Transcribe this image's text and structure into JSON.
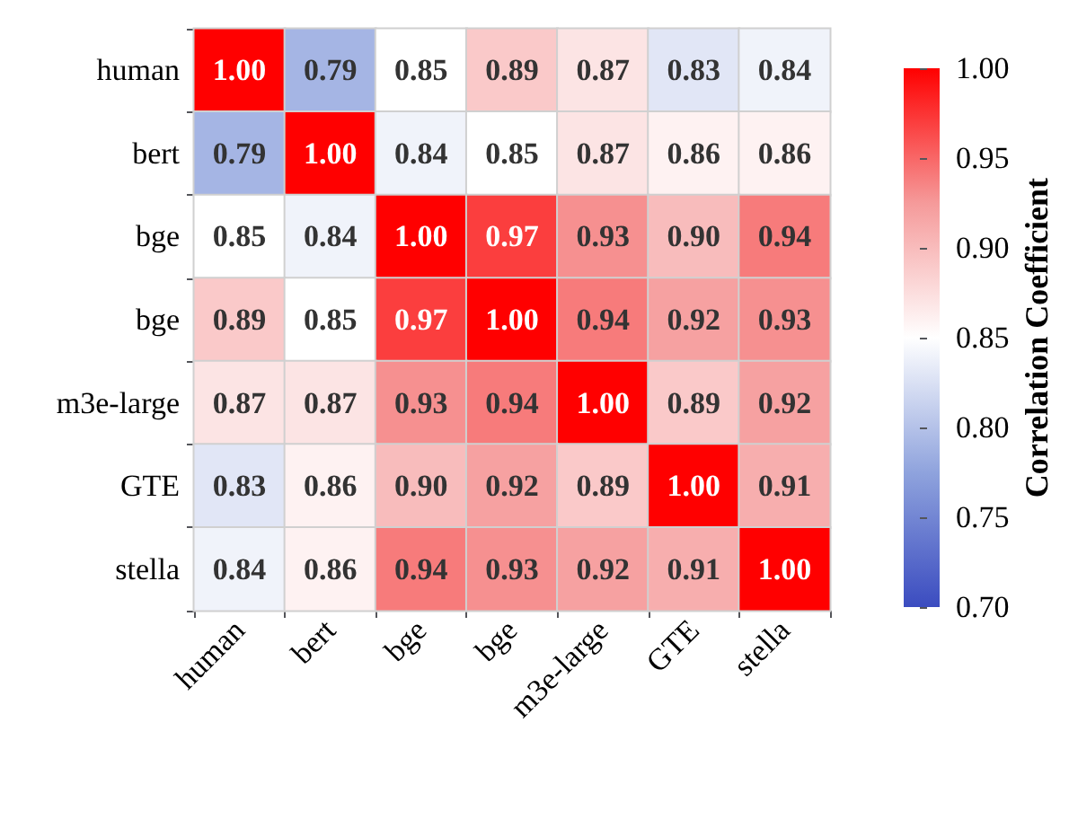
{
  "chart_data": {
    "type": "heatmap",
    "categories": [
      "human",
      "bert",
      "bge",
      "bge",
      "m3e-large",
      "GTE",
      "stella"
    ],
    "y_categories": [
      "human",
      "bert",
      "bge",
      "bge",
      "m3e-large",
      "GTE",
      "stella"
    ],
    "cells": [
      [
        1.0,
        0.79,
        0.85,
        0.89,
        0.87,
        0.83,
        0.84
      ],
      [
        0.79,
        1.0,
        0.84,
        0.85,
        0.87,
        0.86,
        0.86
      ],
      [
        0.85,
        0.84,
        1.0,
        0.97,
        0.93,
        0.9,
        0.94
      ],
      [
        0.89,
        0.85,
        0.97,
        1.0,
        0.94,
        0.92,
        0.93
      ],
      [
        0.87,
        0.87,
        0.93,
        0.94,
        1.0,
        0.89,
        0.92
      ],
      [
        0.83,
        0.86,
        0.9,
        0.92,
        0.89,
        1.0,
        0.91
      ],
      [
        0.84,
        0.86,
        0.94,
        0.93,
        0.92,
        0.91,
        1.0
      ]
    ],
    "cell_labels": [
      [
        "1.00",
        "0.79",
        "0.85",
        "0.89",
        "0.87",
        "0.83",
        "0.84"
      ],
      [
        "0.79",
        "1.00",
        "0.84",
        "0.85",
        "0.87",
        "0.86",
        "0.86"
      ],
      [
        "0.85",
        "0.84",
        "1.00",
        "0.97",
        "0.93",
        "0.90",
        "0.94"
      ],
      [
        "0.89",
        "0.85",
        "0.97",
        "1.00",
        "0.94",
        "0.92",
        "0.93"
      ],
      [
        "0.87",
        "0.87",
        "0.93",
        "0.94",
        "1.00",
        "0.89",
        "0.92"
      ],
      [
        "0.83",
        "0.86",
        "0.90",
        "0.92",
        "0.89",
        "1.00",
        "0.91"
      ],
      [
        "0.84",
        "0.86",
        "0.94",
        "0.93",
        "0.92",
        "0.91",
        "1.00"
      ]
    ],
    "clabel": "Correlation Coefficient",
    "clim": [
      0.7,
      1.0
    ],
    "cticks": [
      {
        "value": 0.7,
        "label": "0.70"
      },
      {
        "value": 0.75,
        "label": "0.75"
      },
      {
        "value": 0.8,
        "label": "0.80"
      },
      {
        "value": 0.85,
        "label": "0.85"
      },
      {
        "value": 0.9,
        "label": "0.90"
      },
      {
        "value": 0.95,
        "label": "0.95"
      },
      {
        "value": 1.0,
        "label": "1.00"
      }
    ]
  }
}
